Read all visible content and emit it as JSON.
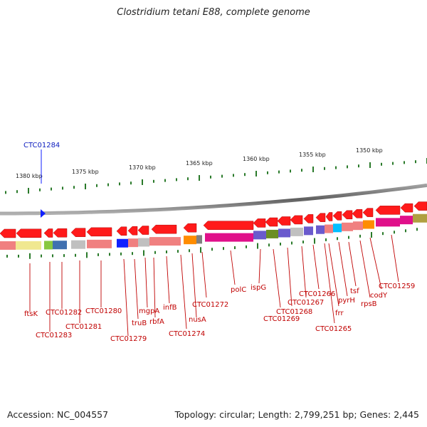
{
  "title": "Clostridium tetani E88, complete genome",
  "accession": "Accession: NC_004557",
  "topology": "Topology: circular; Length: 2,799,251 bp; Genes: 2,445",
  "scale_labels": [
    "1380 kbp",
    "1375 kbp",
    "1370 kbp",
    "1365 kbp",
    "1360 kbp",
    "1355 kbp",
    "1350 kbp"
  ],
  "selected_gene": "CTC01284",
  "gene_labels": [
    "ftsK",
    "CTC01283",
    "CTC01282",
    "CTC01281",
    "CTC01280",
    "CTC01279",
    "truB",
    "mgpA",
    "rbfA",
    "infB",
    "CTC01274",
    "nusA",
    "CTC01272",
    "polC",
    "ispG",
    "CTC01269",
    "CTC01268",
    "CTC01267",
    "CTC01266",
    "CTC01265",
    "frr",
    "pyrH",
    "tsf",
    "rpsB",
    "codY",
    "CTC01259"
  ],
  "colors": {
    "gene_red": "#ff1a1a",
    "label_red": "#c00000",
    "tick_green": "#2a7a2a",
    "backbone": "#808080",
    "selection_blue": "#1020ff"
  }
}
